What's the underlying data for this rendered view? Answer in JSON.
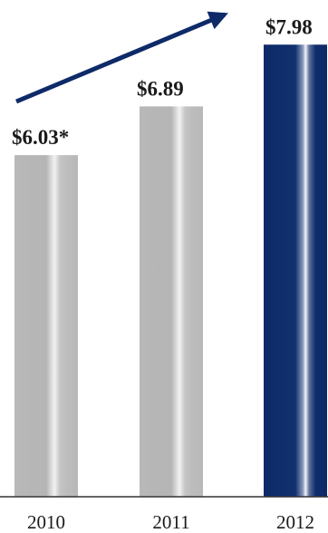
{
  "chart_data": {
    "type": "bar",
    "categories": [
      "2010",
      "2011",
      "2012"
    ],
    "values": [
      6.03,
      6.89,
      7.98
    ],
    "value_labels": [
      "$6.03*",
      "$6.89",
      "$7.98"
    ],
    "title": "",
    "xlabel": "",
    "ylabel": "",
    "grid": false,
    "legend": "none",
    "trend_arrow": "up-right",
    "colors": {
      "bar_default": "#b8b8b8",
      "bar_highlight": "#0e2a68",
      "arrow": "#0e2a68",
      "axis": "#333333"
    },
    "highlight_category": "2012"
  }
}
